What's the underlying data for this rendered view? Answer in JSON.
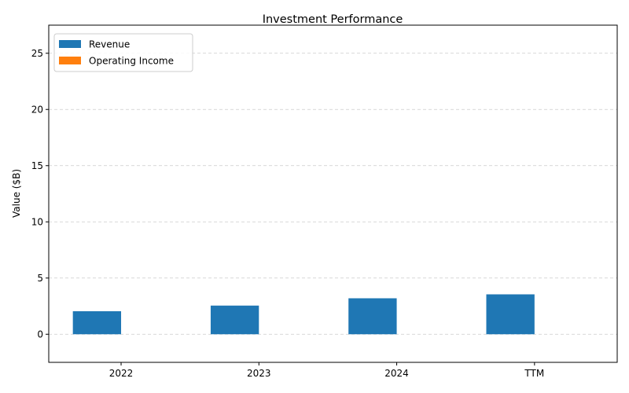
{
  "chart_data": {
    "type": "bar",
    "title": "Investment Performance",
    "xlabel": "",
    "ylabel": "Value ($B)",
    "categories": [
      "2022",
      "2023",
      "2024",
      "TTM"
    ],
    "series": [
      {
        "name": "Revenue",
        "color": "#1f77b4",
        "values": [
          2.05,
          2.55,
          3.2,
          3.55
        ]
      },
      {
        "name": "Operating Income",
        "color": "#ff7f0e",
        "values": [
          0,
          0,
          0,
          0
        ]
      }
    ],
    "ylim": [
      -2.5,
      27.5
    ],
    "yticks": [
      0,
      5,
      10,
      15,
      20,
      25
    ],
    "grid": true,
    "legend_position": "top-left"
  }
}
